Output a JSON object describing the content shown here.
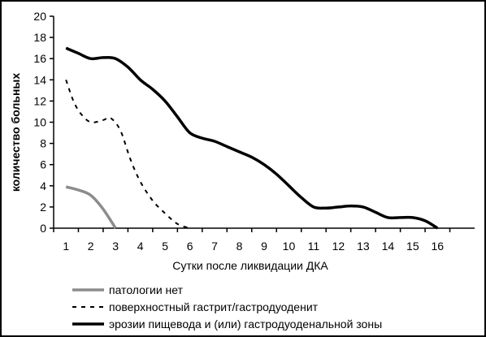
{
  "chart_data": {
    "type": "line",
    "title": "",
    "xlabel": "Сутки после ликвидации ДКА",
    "ylabel": "количество больных",
    "xlim": [
      0.5,
      17.5
    ],
    "ylim": [
      0,
      20
    ],
    "x_ticks": [
      1,
      2,
      3,
      4,
      5,
      6,
      7,
      8,
      9,
      10,
      11,
      12,
      13,
      14,
      15,
      16
    ],
    "y_ticks": [
      0,
      2,
      4,
      6,
      8,
      10,
      12,
      14,
      16,
      18,
      20
    ],
    "grid": false,
    "legend_position": "bottom",
    "series": [
      {
        "name": "патологии нет",
        "color": "#8c8c8c",
        "style": "solid",
        "x": [
          1,
          1.5,
          2,
          2.5,
          3
        ],
        "y": [
          3.9,
          3.6,
          3.1,
          1.8,
          0
        ]
      },
      {
        "name": "поверхностный гастрит/гастродуоденит",
        "color": "#000000",
        "style": "dashed",
        "x": [
          1,
          1.3,
          1.6,
          2,
          2.5,
          2.8,
          3.2,
          3.6,
          4,
          4.5,
          5,
          5.5,
          6
        ],
        "y": [
          14,
          12,
          10.8,
          10,
          10.2,
          10.4,
          9.2,
          6.5,
          4.4,
          2.6,
          1.4,
          0.4,
          0
        ]
      },
      {
        "name": "эрозии пищевода и (или) гастродуоденальной зоны",
        "color": "#000000",
        "style": "solid",
        "x": [
          1,
          1.5,
          2,
          2.5,
          3,
          3.5,
          4,
          4.5,
          5,
          5.5,
          6,
          6.5,
          7,
          7.5,
          8,
          8.5,
          9,
          9.5,
          10,
          10.5,
          11,
          11.5,
          12,
          12.5,
          13,
          13.5,
          14,
          14.5,
          15,
          15.5,
          16
        ],
        "y": [
          17,
          16.5,
          16,
          16.1,
          16,
          15.2,
          14,
          13.1,
          12,
          10.5,
          9,
          8.5,
          8.2,
          7.7,
          7.2,
          6.7,
          6,
          5.1,
          4,
          2.9,
          2,
          1.9,
          2,
          2.1,
          2,
          1.5,
          1,
          1,
          1,
          0.7,
          0
        ]
      }
    ]
  }
}
